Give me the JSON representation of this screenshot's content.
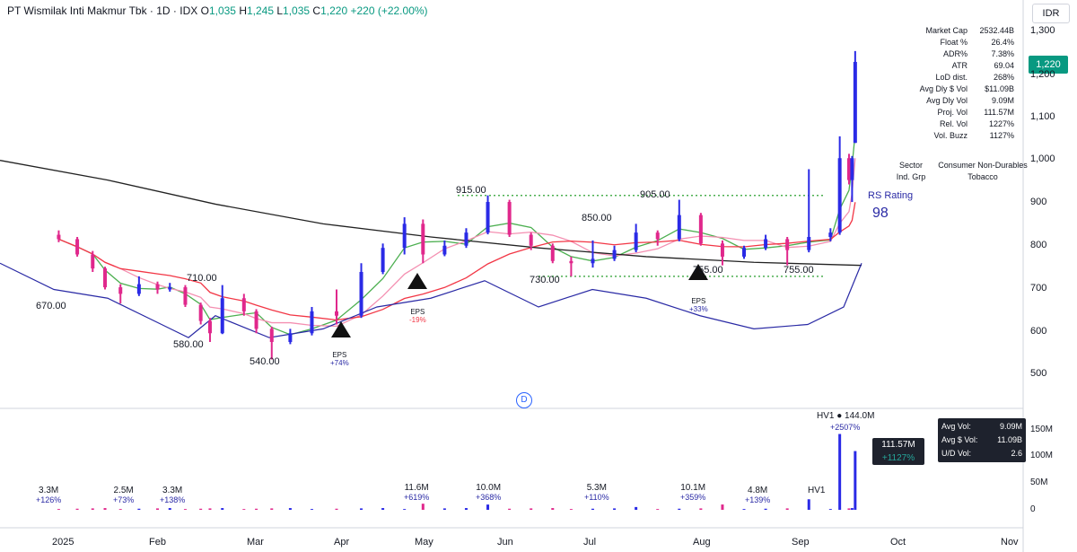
{
  "header": {
    "title": "PT Wismilak Inti Makmur Tbk · 1D · IDX",
    "o_label": "O",
    "o": "1,035",
    "h_label": "H",
    "h": "1,245",
    "l_label": "L",
    "l": "1,035",
    "c_label": "C",
    "c": "1,220",
    "change": "+220 (+22.00%)"
  },
  "currency": "IDR",
  "last_price_badge": "1,220",
  "stats": [
    {
      "k": "Market Cap",
      "v": "2532.44B"
    },
    {
      "k": "Float %",
      "v": "26.4%"
    },
    {
      "k": "ADR%",
      "v": "7.38%"
    },
    {
      "k": "ATR",
      "v": "69.04"
    },
    {
      "k": "LoD dist.",
      "v": "268%"
    },
    {
      "k": "Avg Dly $ Vol",
      "v": "$11.09B"
    },
    {
      "k": "Avg Dly Vol",
      "v": "9.09M"
    },
    {
      "k": "Proj. Vol",
      "v": "111.57M"
    },
    {
      "k": "Rel. Vol",
      "v": "1227%"
    },
    {
      "k": "Vol. Buzz",
      "v": "1127%"
    }
  ],
  "sector": {
    "k": "Sector",
    "v": "Consumer Non-Durables"
  },
  "industry": {
    "k": "Ind. Grp",
    "v": "Tobacco"
  },
  "rs_rating": {
    "label": "RS Rating",
    "value": "98"
  },
  "price_axis_ticks": [
    "1,300",
    "1,200",
    "1,100",
    "1,000",
    "900",
    "800",
    "700",
    "600",
    "500"
  ],
  "volume_axis_ticks": [
    "150M",
    "100M",
    "50M",
    "0"
  ],
  "time_axis_ticks": [
    "2025",
    "Feb",
    "Mar",
    "Apr",
    "May",
    "Jun",
    "Jul",
    "Aug",
    "Sep",
    "Oct",
    "Nov"
  ],
  "price_labels": [
    "670.00",
    "710.00",
    "580.00",
    "540.00",
    "915.00",
    "730.00",
    "850.00",
    "905.00",
    "755.00",
    "755.00"
  ],
  "volume_labels": [
    {
      "v": "3.3M",
      "p": "+126%"
    },
    {
      "v": "2.5M",
      "p": "+73%"
    },
    {
      "v": "3.3M",
      "p": "+138%"
    },
    {
      "v": "11.6M",
      "p": "+619%"
    },
    {
      "v": "10.0M",
      "p": "+368%"
    },
    {
      "v": "5.3M",
      "p": "+110%"
    },
    {
      "v": "10.1M",
      "p": "+359%"
    },
    {
      "v": "4.8M",
      "p": "+139%"
    }
  ],
  "hv1_small": "HV1",
  "hv1_main": "HV1 ● 144.0M",
  "hv1_main_pct": "+2507%",
  "proj_vol_badge": {
    "v": "111.57M",
    "p": "+1127%"
  },
  "vol_stats": [
    {
      "k": "Avg Vol:",
      "v": "9.09M"
    },
    {
      "k": "Avg $ Vol:",
      "v": "11.09B"
    },
    {
      "k": "U/D Vol:",
      "v": "2.6"
    }
  ],
  "eps": [
    {
      "label": "EPS",
      "pct": "+74%"
    },
    {
      "label": "EPS",
      "pct": "-19%"
    },
    {
      "label": "EPS",
      "pct": "+33%"
    }
  ],
  "d_marker": "D",
  "colors": {
    "up": "#2a2ae6",
    "down": "#e0288c",
    "ma_red": "#f23645",
    "ma_green": "#4caf50",
    "ma_pink": "#f48fb1",
    "ma_black": "#222222",
    "rs_line": "#2a2aa5",
    "pivot": "#4caf50"
  },
  "chart_data": {
    "type": "candlestick",
    "series": [
      {
        "name": "",
        "values": [
          {
            "t": "2025-01-02",
            "o": 825,
            "h": 835,
            "l": 808,
            "c": 815
          },
          {
            "t": "2025-01-08",
            "o": 815,
            "h": 820,
            "l": 775,
            "c": 780
          },
          {
            "t": "2025-01-13",
            "o": 780,
            "h": 788,
            "l": 740,
            "c": 748
          },
          {
            "t": "2025-01-17",
            "o": 748,
            "h": 752,
            "l": 700,
            "c": 705
          },
          {
            "t": "2025-01-22",
            "o": 705,
            "h": 712,
            "l": 668,
            "c": 690
          },
          {
            "t": "2025-01-28",
            "o": 690,
            "h": 730,
            "l": 685,
            "c": 712
          },
          {
            "t": "2025-02-03",
            "o": 712,
            "h": 718,
            "l": 690,
            "c": 700
          },
          {
            "t": "2025-02-07",
            "o": 700,
            "h": 715,
            "l": 695,
            "c": 705
          },
          {
            "t": "2025-02-12",
            "o": 705,
            "h": 710,
            "l": 660,
            "c": 665
          },
          {
            "t": "2025-02-17",
            "o": 665,
            "h": 670,
            "l": 620,
            "c": 628
          },
          {
            "t": "2025-02-20",
            "o": 628,
            "h": 635,
            "l": 580,
            "c": 600
          },
          {
            "t": "2025-02-24",
            "o": 600,
            "h": 710,
            "l": 598,
            "c": 680
          },
          {
            "t": "2025-03-03",
            "o": 680,
            "h": 690,
            "l": 640,
            "c": 650
          },
          {
            "t": "2025-03-07",
            "o": 650,
            "h": 655,
            "l": 600,
            "c": 610
          },
          {
            "t": "2025-03-12",
            "o": 610,
            "h": 615,
            "l": 540,
            "c": 580
          },
          {
            "t": "2025-03-18",
            "o": 580,
            "h": 610,
            "l": 575,
            "c": 600
          },
          {
            "t": "2025-03-25",
            "o": 600,
            "h": 660,
            "l": 595,
            "c": 650
          },
          {
            "t": "2025-04-02",
            "o": 650,
            "h": 700,
            "l": 620,
            "c": 640
          },
          {
            "t": "2025-04-10",
            "o": 640,
            "h": 760,
            "l": 635,
            "c": 740
          },
          {
            "t": "2025-04-17",
            "o": 740,
            "h": 805,
            "l": 735,
            "c": 795
          },
          {
            "t": "2025-04-24",
            "o": 795,
            "h": 865,
            "l": 780,
            "c": 850
          },
          {
            "t": "2025-04-30",
            "o": 850,
            "h": 860,
            "l": 760,
            "c": 780
          },
          {
            "t": "2025-05-07",
            "o": 780,
            "h": 812,
            "l": 776,
            "c": 800
          },
          {
            "t": "2025-05-14",
            "o": 800,
            "h": 840,
            "l": 795,
            "c": 830
          },
          {
            "t": "2025-05-21",
            "o": 830,
            "h": 915,
            "l": 826,
            "c": 900
          },
          {
            "t": "2025-05-28",
            "o": 900,
            "h": 905,
            "l": 820,
            "c": 825
          },
          {
            "t": "2025-06-04",
            "o": 825,
            "h": 830,
            "l": 790,
            "c": 800
          },
          {
            "t": "2025-06-11",
            "o": 800,
            "h": 805,
            "l": 760,
            "c": 765
          },
          {
            "t": "2025-06-17",
            "o": 765,
            "h": 775,
            "l": 730,
            "c": 760
          },
          {
            "t": "2025-06-24",
            "o": 760,
            "h": 812,
            "l": 750,
            "c": 770
          },
          {
            "t": "2025-07-01",
            "o": 770,
            "h": 800,
            "l": 765,
            "c": 790
          },
          {
            "t": "2025-07-08",
            "o": 790,
            "h": 850,
            "l": 785,
            "c": 830
          },
          {
            "t": "2025-07-15",
            "o": 830,
            "h": 835,
            "l": 800,
            "c": 815
          },
          {
            "t": "2025-07-22",
            "o": 815,
            "h": 905,
            "l": 810,
            "c": 870
          },
          {
            "t": "2025-07-29",
            "o": 870,
            "h": 875,
            "l": 800,
            "c": 805
          },
          {
            "t": "2025-08-05",
            "o": 805,
            "h": 812,
            "l": 755,
            "c": 775
          },
          {
            "t": "2025-08-12",
            "o": 775,
            "h": 800,
            "l": 770,
            "c": 795
          },
          {
            "t": "2025-08-19",
            "o": 795,
            "h": 825,
            "l": 790,
            "c": 815
          },
          {
            "t": "2025-08-26",
            "o": 815,
            "h": 820,
            "l": 755,
            "c": 790
          },
          {
            "t": "2025-09-02",
            "o": 790,
            "h": 975,
            "l": 785,
            "c": 820
          },
          {
            "t": "2025-09-09",
            "o": 820,
            "h": 840,
            "l": 810,
            "c": 830
          },
          {
            "t": "2025-09-12",
            "o": 830,
            "h": 1050,
            "l": 825,
            "c": 1000
          },
          {
            "t": "2025-09-15",
            "o": 1000,
            "h": 1010,
            "l": 940,
            "c": 950
          },
          {
            "t": "2025-09-16",
            "o": 950,
            "h": 1005,
            "l": 900,
            "c": 1000
          },
          {
            "t": "2025-09-17",
            "o": 1035,
            "h": 1245,
            "l": 1035,
            "c": 1220
          }
        ]
      }
    ],
    "yrange": [
      450,
      1330
    ],
    "volume_range": [
      0,
      160
    ]
  }
}
